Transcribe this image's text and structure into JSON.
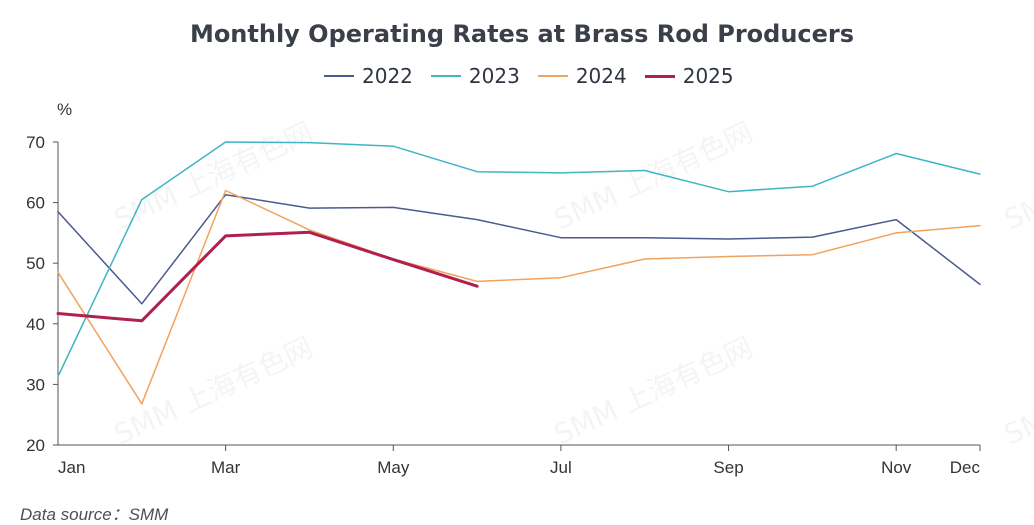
{
  "chart_data": {
    "type": "line",
    "title": "Monthly Operating Rates at Brass Rod Producers",
    "ylabel": "%",
    "xlabel": "",
    "x_ticks": [
      "Jan",
      "Mar",
      "May",
      "Jul",
      "Sep",
      "Nov",
      "Dec"
    ],
    "ylim": [
      20,
      70
    ],
    "y_ticks": [
      20,
      30,
      40,
      50,
      60,
      70
    ],
    "legend_position": "top-center",
    "grid": false,
    "series": [
      {
        "name": "2022",
        "color": "#4c5a8f",
        "points": [
          [
            1,
            58.5
          ],
          [
            2,
            43.3
          ],
          [
            3,
            61.3
          ],
          [
            4,
            59.1
          ],
          [
            5,
            59.2
          ],
          [
            6,
            57.2
          ],
          [
            7,
            54.2
          ],
          [
            8,
            54.2
          ],
          [
            9,
            54.0
          ],
          [
            10,
            54.3
          ],
          [
            11,
            57.2
          ],
          [
            12,
            46.5
          ]
        ]
      },
      {
        "name": "2023",
        "color": "#3fb6c2",
        "points": [
          [
            1,
            31.3
          ],
          [
            2,
            60.5
          ],
          [
            3,
            70.0
          ],
          [
            4,
            69.9
          ],
          [
            5,
            69.3
          ],
          [
            6,
            65.1
          ],
          [
            7,
            64.9
          ],
          [
            8,
            65.3
          ],
          [
            9,
            61.8
          ],
          [
            10,
            62.7
          ],
          [
            11,
            68.1
          ],
          [
            12,
            64.7
          ]
        ]
      },
      {
        "name": "2024",
        "color": "#f0a35e",
        "points": [
          [
            1,
            48.5
          ],
          [
            2,
            26.8
          ],
          [
            3,
            62.0
          ],
          [
            4,
            55.5
          ],
          [
            5,
            50.7
          ],
          [
            6,
            47.0
          ],
          [
            7,
            47.6
          ],
          [
            8,
            50.7
          ],
          [
            9,
            51.1
          ],
          [
            10,
            51.4
          ],
          [
            11,
            55.0
          ],
          [
            12,
            56.2
          ]
        ]
      },
      {
        "name": "2025",
        "color": "#b0204e",
        "thick": true,
        "points": [
          [
            1,
            41.7
          ],
          [
            2,
            40.5
          ],
          [
            3,
            54.5
          ],
          [
            4,
            55.1
          ],
          [
            5,
            50.6
          ],
          [
            6,
            46.2
          ]
        ]
      }
    ],
    "watermark": "SMM 上海有色网"
  },
  "source_text": "Data source：SMM"
}
